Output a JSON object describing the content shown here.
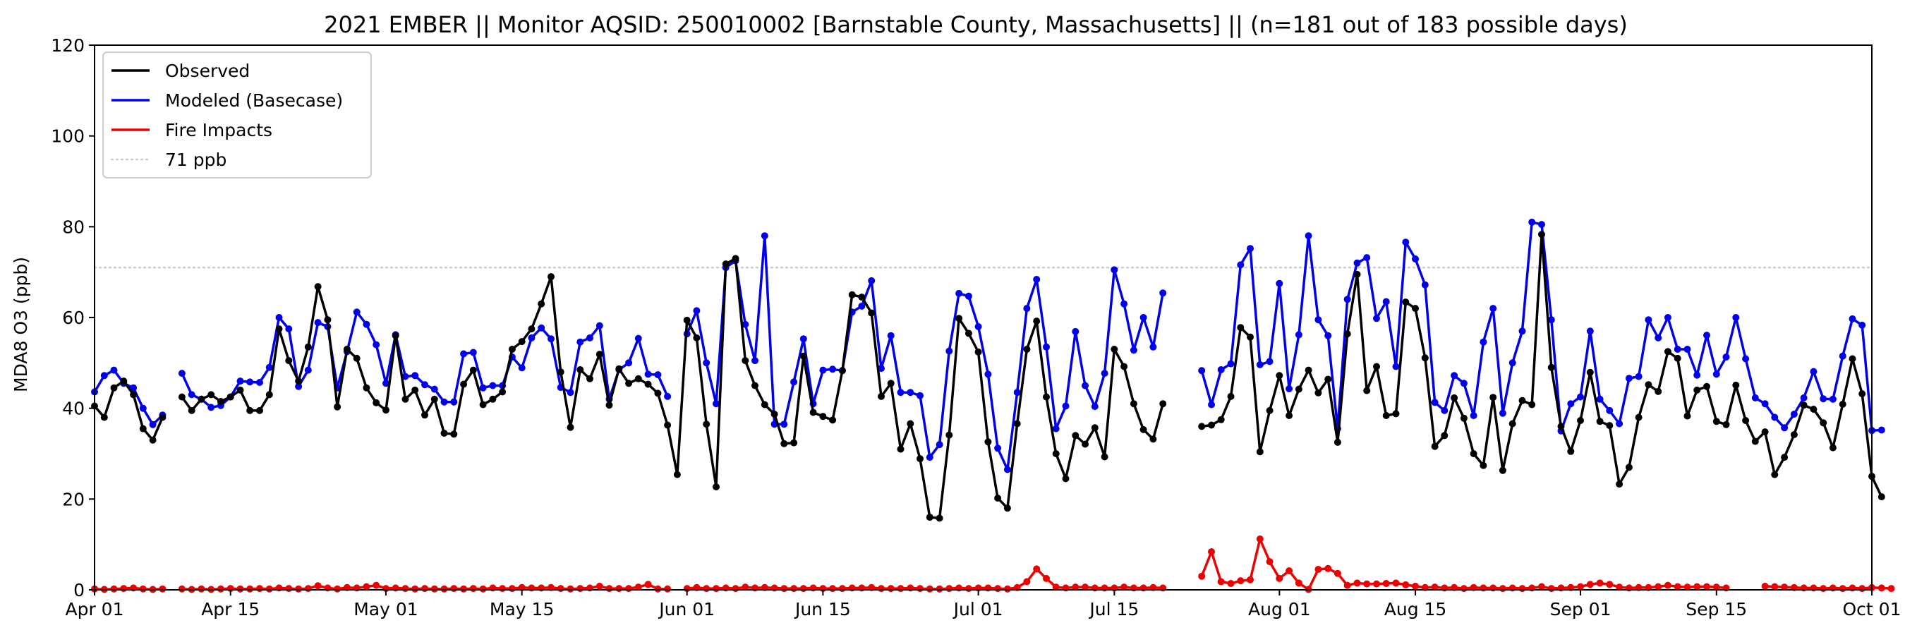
{
  "chart_data": {
    "type": "line",
    "title": "2021 EMBER || Monitor AQSID: 250010002 [Barnstable County, Massachusetts] || (n=181 out of 183 possible days)",
    "xlabel": "",
    "ylabel": "MDA8 O3 (ppb)",
    "xlim": [
      "2021-04-01",
      "2021-10-01"
    ],
    "ylim": [
      0,
      120
    ],
    "x_ticks": [
      "2021-04-01",
      "2021-04-15",
      "2021-05-01",
      "2021-05-15",
      "2021-06-01",
      "2021-06-15",
      "2021-07-01",
      "2021-07-15",
      "2021-08-01",
      "2021-08-15",
      "2021-09-01",
      "2021-09-15",
      "2021-10-01"
    ],
    "x_tick_labels": [
      "Apr 01",
      "Apr 15",
      "May 01",
      "May 15",
      "Jun 01",
      "Jun 15",
      "Jul 01",
      "Jul 15",
      "Aug 01",
      "Aug 15",
      "Sep 01",
      "Sep 15",
      "Oct 01"
    ],
    "y_ticks": [
      0,
      20,
      40,
      60,
      80,
      100,
      120
    ],
    "y_tick_labels": [
      "0",
      "20",
      "40",
      "60",
      "80",
      "100",
      "120"
    ],
    "grid": false,
    "legend_position": "top-left",
    "x_start": "2021-04-01",
    "reference_line": {
      "name": "71 ppb",
      "value": 71,
      "color": "#cccccc",
      "style": "dotted"
    },
    "series": [
      {
        "name": "Observed",
        "color": "#000000",
        "values": [
          40.5,
          38,
          44.5,
          46,
          43,
          35.5,
          33,
          38,
          null,
          42.5,
          39.5,
          42,
          43,
          41.5,
          42.5,
          44,
          39.5,
          39.5,
          43,
          57.5,
          50.5,
          46,
          53.5,
          66.8,
          59.5,
          40.3,
          53,
          51,
          44.5,
          41.2,
          39.6,
          56,
          42,
          44,
          38.5,
          42,
          34.5,
          34.3,
          45.3,
          48.4,
          40.8,
          42,
          43.6,
          53,
          54.7,
          57.5,
          63,
          69,
          48,
          35.8,
          48.5,
          46.5,
          51.9,
          40.7,
          48.7,
          45.5,
          46.5,
          45.3,
          43.3,
          36.3,
          25.4,
          59.4,
          55.5,
          36.5,
          22.7,
          71.8,
          73,
          50.5,
          45,
          40.8,
          38.7,
          32.2,
          32.4,
          51.5,
          39.1,
          38.2,
          37.4,
          48.3,
          65,
          64.5,
          61,
          42.6,
          45.5,
          31,
          36.6,
          28.9,
          16,
          15.8,
          34.1,
          59.8,
          56.5,
          52.4,
          32.6,
          20.2,
          18,
          36.6,
          53,
          59.2,
          42.5,
          30,
          24.5,
          34,
          32.1,
          35.7,
          29.3,
          53,
          49.2,
          41,
          35.3,
          33.2,
          41,
          null,
          null,
          null,
          36,
          36.3,
          37.5,
          42.6,
          57.8,
          55.7,
          30.4,
          39.5,
          47.2,
          38.4,
          44.2,
          48.4,
          43.4,
          46.4,
          32.5,
          56.4,
          69.5,
          43.9,
          49.2,
          38.4,
          38.8,
          63.4,
          62,
          51.1,
          31.6,
          34,
          42.3,
          37.8,
          30,
          27.4,
          42.4,
          26.3,
          36.6,
          41.7,
          40.8,
          78.3,
          49,
          36,
          30.5,
          37.3,
          47.9,
          37.1,
          36.2,
          23.3,
          27,
          38,
          45.2,
          43.7,
          52.5,
          51,
          38.3,
          44,
          44.8,
          37.1,
          36.4,
          45.1,
          37.3,
          32.7,
          34.8,
          25.4,
          29.2,
          34.2,
          40.7,
          39.8,
          36.8,
          31.3,
          40.9,
          50.9,
          43.2,
          25,
          20.5
        ]
      },
      {
        "name": "Modeled (Basecase)",
        "color": "#0000ee",
        "values": [
          43.6,
          47.2,
          48.4,
          45.5,
          44.5,
          40,
          36.4,
          38.5,
          null,
          47.7,
          43,
          42,
          40.2,
          40.6,
          42.5,
          46,
          45.8,
          45.7,
          49,
          60,
          57.5,
          44.8,
          48.4,
          58.9,
          58,
          44.5,
          52.5,
          61.2,
          58.5,
          54,
          45.5,
          56.2,
          47,
          47.2,
          45.2,
          44.2,
          41.4,
          41.4,
          52,
          52.3,
          44.5,
          45,
          45,
          51.3,
          48.9,
          55.5,
          57.7,
          55.3,
          44.6,
          43.5,
          54.6,
          55.5,
          58.2,
          42,
          48.5,
          50,
          55.4,
          47.5,
          47.4,
          42.6,
          null,
          56.4,
          61.5,
          50,
          41,
          71,
          72.5,
          58.5,
          50.5,
          78,
          36.5,
          36.5,
          45.8,
          55.3,
          41,
          48.4,
          48.6,
          48.3,
          61.2,
          62.5,
          68.1,
          48.8,
          56,
          43.5,
          43.5,
          42.8,
          29.2,
          32,
          52.6,
          65.3,
          64.7,
          58,
          47.5,
          31.2,
          26.5,
          43.5,
          62,
          68.4,
          53.5,
          35.5,
          40.5,
          56.9,
          45,
          40.4,
          47.7,
          70.5,
          63,
          52.8,
          60,
          53.5,
          65.4,
          null,
          null,
          null,
          48.3,
          40.8,
          48.5,
          49.8,
          71.6,
          75.2,
          49.6,
          50.3,
          67.5,
          44.3,
          56.2,
          78,
          59.5,
          56,
          35.5,
          64,
          72,
          73.2,
          59.8,
          63.5,
          49.2,
          76.6,
          72.9,
          67.2,
          41.3,
          39.5,
          47.2,
          45.5,
          38.4,
          54.6,
          62,
          38.9,
          50,
          57,
          81,
          80.5,
          59.5,
          35,
          41,
          42.5,
          57,
          42,
          39.5,
          36.6,
          46.6,
          47,
          59.5,
          55.5,
          60,
          53,
          53,
          47.3,
          56.1,
          47.5,
          51.3,
          60,
          50.9,
          42.3,
          41,
          38,
          35.7,
          38.7,
          42.3,
          48.1,
          42.1,
          42,
          51.5,
          59.7,
          58.3,
          35.1,
          35.2
        ]
      },
      {
        "name": "Fire Impacts",
        "color": "#ee0000",
        "values": [
          0.2,
          0.1,
          0.2,
          0.3,
          0.4,
          0.2,
          0.1,
          0.2,
          null,
          0.2,
          0.1,
          0.2,
          0.1,
          0.2,
          0.3,
          0.2,
          0.2,
          0.3,
          0.2,
          0.4,
          0.3,
          0.2,
          0.3,
          0.9,
          0.4,
          0.2,
          0.5,
          0.4,
          0.7,
          1,
          0.3,
          0.4,
          0.3,
          0.2,
          0.3,
          0.2,
          0.2,
          0.3,
          0.2,
          0.3,
          0.2,
          0.4,
          0.3,
          0.3,
          0.5,
          0.4,
          0.4,
          0.5,
          0.3,
          0.2,
          0.3,
          0.4,
          0.8,
          0.3,
          0.3,
          0.3,
          0.6,
          1.2,
          0.2,
          0.2,
          null,
          0.3,
          0.5,
          0.3,
          0.3,
          0.4,
          0.3,
          0.6,
          0.4,
          0.5,
          0.4,
          0.3,
          0.3,
          0.3,
          0.4,
          0.3,
          0.3,
          0.3,
          0.4,
          0.4,
          0.5,
          0.3,
          0.3,
          0.3,
          0.4,
          0.3,
          0.2,
          0.2,
          0.3,
          0.4,
          0.3,
          0.4,
          0.4,
          0.3,
          0.2,
          0.5,
          1.8,
          4.6,
          2.5,
          0.6,
          0.4,
          0.6,
          0.6,
          0.4,
          0.4,
          0.4,
          0.6,
          0.4,
          0.4,
          0.5,
          0.4,
          null,
          null,
          null,
          3,
          8.4,
          1.8,
          1.4,
          2,
          2.2,
          11.2,
          6.2,
          2.5,
          4.2,
          1.5,
          0.1,
          4.5,
          4.7,
          3.6,
          1,
          1.5,
          1.3,
          1.3,
          1.4,
          1.5,
          1.1,
          0.8,
          0.5,
          0.6,
          0.4,
          0.5,
          0.3,
          0.5,
          0.4,
          0.4,
          0.3,
          0.4,
          0.3,
          0.4,
          0.7,
          0.3,
          0.4,
          0.5,
          0.7,
          1.2,
          1.5,
          1.2,
          0.6,
          0.4,
          0.5,
          0.5,
          0.7,
          1,
          0.7,
          0.6,
          0.7,
          0.7,
          0.6,
          0.4,
          null,
          null,
          null,
          0.8,
          0.7,
          0.6,
          0.5,
          0.4,
          0.4,
          0.3,
          0.4,
          0.3,
          0.4,
          0.3,
          0.5,
          0.4,
          0.3
        ]
      }
    ]
  }
}
